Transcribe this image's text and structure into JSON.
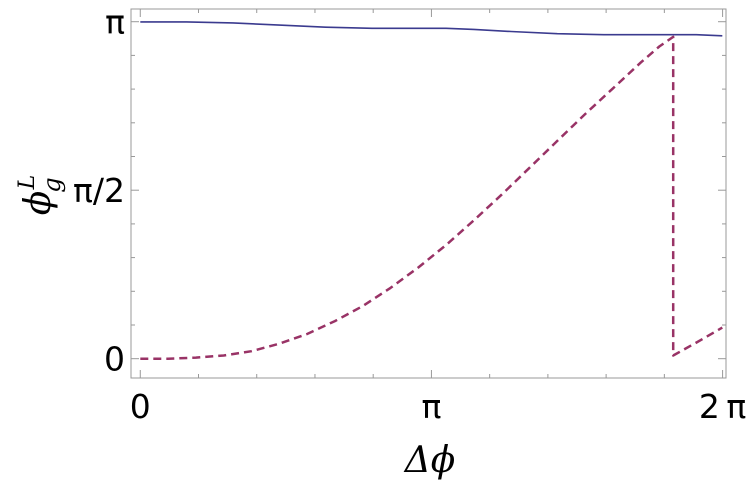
{
  "chart_data": {
    "type": "line",
    "xlabel": "Δϕ",
    "ylabel_base": "ϕ",
    "ylabel_sub": "g",
    "ylabel_sup": "L",
    "xlim": [
      -0.1,
      6.32
    ],
    "ylim": [
      -0.18,
      3.26
    ],
    "x_ticks": [
      {
        "value": 0,
        "label": "0"
      },
      {
        "value": 3.14159,
        "label": "π"
      },
      {
        "value": 6.28318,
        "label": "2 π"
      }
    ],
    "y_ticks": [
      {
        "value": 0,
        "label": "0"
      },
      {
        "value": 1.5708,
        "label": "π/2"
      },
      {
        "value": 3.14159,
        "label": "π"
      }
    ],
    "grid": false,
    "series": [
      {
        "style": "solid",
        "color": "#3b3b8f",
        "x": [
          0,
          0.5,
          1.0,
          1.5,
          2.0,
          2.5,
          3.0,
          3.3,
          3.6,
          4.0,
          4.5,
          5.0,
          5.5,
          6.0,
          6.28
        ],
        "y": [
          3.14,
          3.14,
          3.13,
          3.11,
          3.09,
          3.08,
          3.08,
          3.08,
          3.07,
          3.05,
          3.03,
          3.02,
          3.02,
          3.02,
          3.01
        ]
      },
      {
        "style": "dashed",
        "color": "#993366",
        "x": [
          0,
          0.3,
          0.6,
          0.9,
          1.2,
          1.5,
          1.8,
          2.1,
          2.4,
          2.7,
          3.0,
          3.3,
          3.6,
          3.9,
          4.2,
          4.5,
          4.8,
          5.1,
          5.4,
          5.6,
          5.75,
          5.75,
          6.0,
          6.28
        ],
        "y": [
          0.0,
          0.0,
          0.01,
          0.03,
          0.07,
          0.14,
          0.23,
          0.35,
          0.49,
          0.66,
          0.85,
          1.06,
          1.29,
          1.53,
          1.78,
          2.03,
          2.28,
          2.52,
          2.76,
          2.91,
          3.0,
          0.03,
          0.15,
          0.29
        ]
      }
    ]
  }
}
